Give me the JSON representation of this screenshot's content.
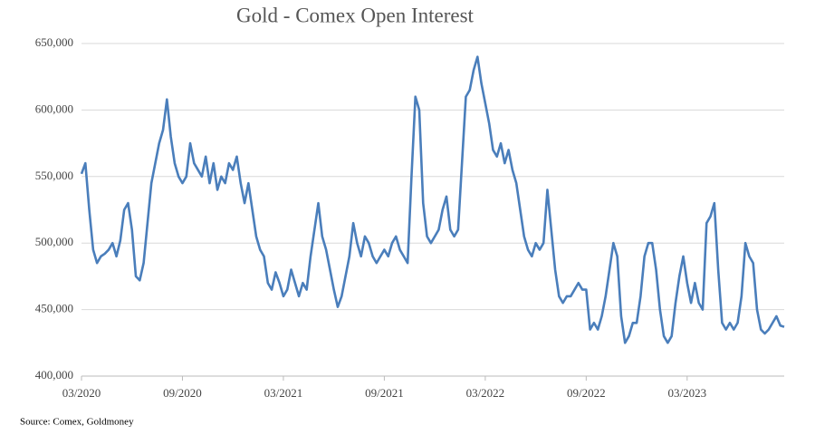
{
  "chart_data": {
    "type": "line",
    "title": "Gold - Comex Open Interest",
    "source": "Source: Comex, Goldmoney",
    "categories": [
      "03/2020",
      null,
      null,
      null,
      null,
      null,
      null,
      null,
      null,
      null,
      null,
      null,
      null,
      null,
      null,
      null,
      null,
      null,
      null,
      null,
      null,
      null,
      null,
      null,
      null,
      null,
      "09/2020",
      null,
      null,
      null,
      null,
      null,
      null,
      null,
      null,
      null,
      null,
      null,
      null,
      null,
      null,
      null,
      null,
      null,
      null,
      null,
      null,
      null,
      null,
      null,
      null,
      null,
      "03/2021",
      null,
      null,
      null,
      null,
      null,
      null,
      null,
      null,
      null,
      null,
      null,
      null,
      null,
      null,
      null,
      null,
      null,
      null,
      null,
      null,
      null,
      null,
      null,
      null,
      null,
      "09/2021",
      null,
      null,
      null,
      null,
      null,
      null,
      null,
      null,
      null,
      null,
      null,
      null,
      null,
      null,
      null,
      null,
      null,
      null,
      null,
      null,
      null,
      null,
      null,
      null,
      null,
      "03/2022",
      null,
      null,
      null,
      null,
      null,
      null,
      null,
      null,
      null,
      null,
      null,
      null,
      null,
      null,
      null,
      null,
      null,
      null,
      null,
      null,
      null,
      null,
      null,
      null,
      null,
      "09/2022",
      null,
      null,
      null,
      null,
      null,
      null,
      null,
      null,
      null,
      null,
      null,
      null,
      null,
      null,
      null,
      null,
      null,
      null,
      null,
      null,
      null,
      null,
      null,
      null,
      null,
      "03/2023",
      null,
      null,
      null,
      null,
      null,
      null,
      null,
      null,
      null,
      null,
      null,
      null,
      null,
      null,
      null,
      null,
      null,
      null,
      null,
      null,
      null,
      null,
      null,
      null,
      null
    ],
    "series": [
      {
        "name": "Open Interest",
        "color": "#4a7ebb",
        "values": [
          552000,
          560000,
          525000,
          495000,
          485000,
          490000,
          492000,
          495000,
          500000,
          490000,
          502000,
          525000,
          530000,
          510000,
          475000,
          472000,
          485000,
          515000,
          545000,
          560000,
          575000,
          585000,
          608000,
          580000,
          560000,
          550000,
          545000,
          550000,
          575000,
          560000,
          555000,
          550000,
          565000,
          545000,
          560000,
          540000,
          550000,
          545000,
          560000,
          555000,
          565000,
          545000,
          530000,
          545000,
          525000,
          505000,
          495000,
          490000,
          470000,
          465000,
          478000,
          470000,
          460000,
          465000,
          480000,
          470000,
          460000,
          470000,
          465000,
          490000,
          510000,
          530000,
          505000,
          495000,
          480000,
          465000,
          452000,
          460000,
          475000,
          490000,
          515000,
          500000,
          490000,
          505000,
          500000,
          490000,
          485000,
          490000,
          495000,
          490000,
          500000,
          505000,
          495000,
          490000,
          485000,
          550000,
          610000,
          600000,
          530000,
          505000,
          500000,
          505000,
          510000,
          525000,
          535000,
          510000,
          505000,
          510000,
          560000,
          610000,
          615000,
          630000,
          640000,
          620000,
          605000,
          590000,
          570000,
          565000,
          575000,
          560000,
          570000,
          555000,
          545000,
          525000,
          505000,
          495000,
          490000,
          500000,
          495000,
          500000,
          540000,
          510000,
          480000,
          460000,
          455000,
          460000,
          460000,
          465000,
          470000,
          465000,
          465000,
          435000,
          440000,
          435000,
          445000,
          460000,
          480000,
          500000,
          490000,
          445000,
          425000,
          430000,
          440000,
          440000,
          460000,
          490000,
          500000,
          500000,
          480000,
          450000,
          430000,
          425000,
          430000,
          455000,
          475000,
          490000,
          470000,
          455000,
          470000,
          455000,
          450000,
          515000,
          520000,
          530000,
          480000,
          440000,
          435000,
          440000,
          435000,
          440000,
          460000,
          500000,
          490000,
          485000,
          450000,
          435000,
          432000,
          435000,
          440000,
          445000,
          438000,
          437000
        ]
      }
    ],
    "ylim": [
      400000,
      650000
    ],
    "yticks": [
      {
        "value": 400000,
        "label": "400,000"
      },
      {
        "value": 450000,
        "label": "450,000"
      },
      {
        "value": 500000,
        "label": "500,000"
      },
      {
        "value": 550000,
        "label": "550,000"
      },
      {
        "value": 600000,
        "label": "600,000"
      },
      {
        "value": 650000,
        "label": "650,000"
      }
    ],
    "grid": true
  }
}
